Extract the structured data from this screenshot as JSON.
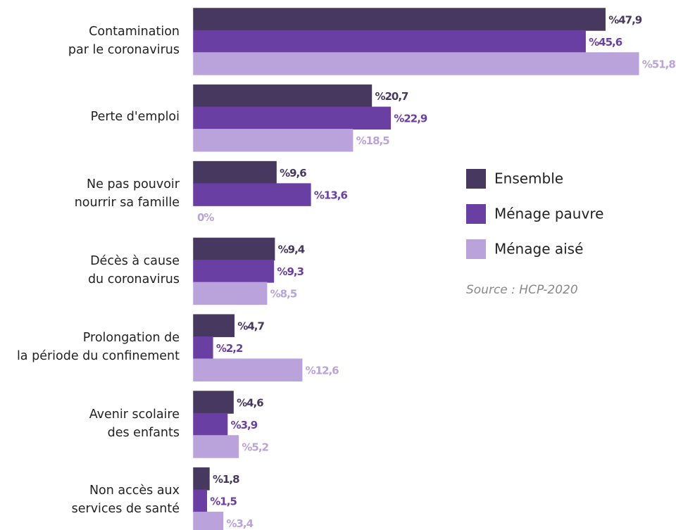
{
  "chart_data": {
    "type": "bar",
    "orientation": "horizontal",
    "categories": [
      "Contamination\npar le coronavirus",
      "Perte d'emploi",
      "Ne pas pouvoir\nnourrir sa famille",
      "Décès à cause\ndu coronavirus",
      "Prolongation de\nla période du confinement",
      "Avenir scolaire\ndes enfants",
      "Non accès aux\nservices de santé"
    ],
    "series": [
      {
        "name": "Ensemble",
        "color": "#46385e",
        "values": [
          47.9,
          20.7,
          9.6,
          9.4,
          4.7,
          4.6,
          1.8
        ],
        "value_labels": [
          "%47,9",
          "%20,7",
          "%9,6",
          "%9,4",
          "%4,7",
          "%4,6",
          "%1,8"
        ]
      },
      {
        "name": "Ménage pauvre",
        "color": "#6a3fa3",
        "values": [
          45.6,
          22.9,
          13.6,
          9.3,
          2.2,
          3.9,
          1.5
        ],
        "value_labels": [
          "%45,6",
          "%22,9",
          "%13,6",
          "%9,3",
          "%2,2",
          "%3,9",
          "%1,5"
        ]
      },
      {
        "name": "Ménage aisé",
        "color": "#b9a3da",
        "values": [
          51.8,
          18.5,
          0,
          8.5,
          12.6,
          5.2,
          3.4
        ],
        "value_labels": [
          "%51,8",
          "%18,5",
          "0%",
          "%8,5",
          "%12,6",
          "%5,2",
          "%3,4"
        ]
      }
    ],
    "xlim": [
      0,
      56
    ],
    "legend": "right",
    "annotation": "Source : HCP-2020"
  }
}
